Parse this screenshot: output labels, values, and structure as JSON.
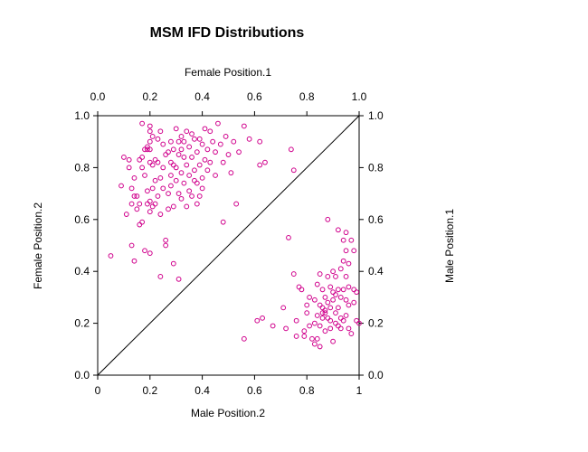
{
  "chart_data": {
    "type": "scatter",
    "title": "MSM IFD Distributions",
    "x_bottom_label": "Male Position.2",
    "x_top_label": "Female Position.1",
    "y_left_label": "Female Position.2",
    "y_right_label": "Male Position.1",
    "xlim": [
      0,
      1
    ],
    "ylim": [
      0,
      1
    ],
    "bottom_ticks": [
      "0",
      "0.2",
      "0.4",
      "0.6",
      "0.8",
      "1"
    ],
    "top_ticks": [
      "0.0",
      "0.2",
      "0.4",
      "0.6",
      "0.8",
      "1.0"
    ],
    "left_ticks": [
      "0.0",
      "0.2",
      "0.4",
      "0.6",
      "0.8",
      "1.0"
    ],
    "right_ticks": [
      "0.0",
      "0.2",
      "0.4",
      "0.6",
      "0.8",
      "1.0"
    ],
    "reference_line": {
      "from": [
        0,
        0
      ],
      "to": [
        1,
        1
      ]
    },
    "grid": false,
    "point_color": "#d0008c",
    "series": [
      {
        "values": [
          [
            0.05,
            0.46
          ],
          [
            0.09,
            0.73
          ],
          [
            0.1,
            0.84
          ],
          [
            0.11,
            0.62
          ],
          [
            0.12,
            0.8
          ],
          [
            0.12,
            0.83
          ],
          [
            0.13,
            0.5
          ],
          [
            0.13,
            0.66
          ],
          [
            0.13,
            0.72
          ],
          [
            0.14,
            0.76
          ],
          [
            0.14,
            0.44
          ],
          [
            0.14,
            0.69
          ],
          [
            0.15,
            0.64
          ],
          [
            0.15,
            0.69
          ],
          [
            0.16,
            0.83
          ],
          [
            0.16,
            0.66
          ],
          [
            0.16,
            0.58
          ],
          [
            0.17,
            0.97
          ],
          [
            0.17,
            0.84
          ],
          [
            0.17,
            0.8
          ],
          [
            0.17,
            0.59
          ],
          [
            0.18,
            0.87
          ],
          [
            0.18,
            0.77
          ],
          [
            0.18,
            0.48
          ],
          [
            0.19,
            0.88
          ],
          [
            0.19,
            0.87
          ],
          [
            0.19,
            0.71
          ],
          [
            0.19,
            0.66
          ],
          [
            0.2,
            0.96
          ],
          [
            0.2,
            0.94
          ],
          [
            0.2,
            0.9
          ],
          [
            0.2,
            0.87
          ],
          [
            0.2,
            0.82
          ],
          [
            0.2,
            0.67
          ],
          [
            0.2,
            0.63
          ],
          [
            0.2,
            0.47
          ],
          [
            0.21,
            0.92
          ],
          [
            0.21,
            0.81
          ],
          [
            0.21,
            0.72
          ],
          [
            0.21,
            0.65
          ],
          [
            0.22,
            0.83
          ],
          [
            0.22,
            0.75
          ],
          [
            0.22,
            0.66
          ],
          [
            0.23,
            0.91
          ],
          [
            0.23,
            0.82
          ],
          [
            0.23,
            0.69
          ],
          [
            0.24,
            0.94
          ],
          [
            0.24,
            0.76
          ],
          [
            0.24,
            0.62
          ],
          [
            0.24,
            0.38
          ],
          [
            0.25,
            0.89
          ],
          [
            0.25,
            0.8
          ],
          [
            0.25,
            0.72
          ],
          [
            0.26,
            0.85
          ],
          [
            0.26,
            0.52
          ],
          [
            0.26,
            0.5
          ],
          [
            0.27,
            0.86
          ],
          [
            0.27,
            0.7
          ],
          [
            0.27,
            0.64
          ],
          [
            0.28,
            0.9
          ],
          [
            0.28,
            0.82
          ],
          [
            0.28,
            0.77
          ],
          [
            0.28,
            0.73
          ],
          [
            0.29,
            0.87
          ],
          [
            0.29,
            0.81
          ],
          [
            0.29,
            0.65
          ],
          [
            0.29,
            0.43
          ],
          [
            0.3,
            0.95
          ],
          [
            0.3,
            0.8
          ],
          [
            0.3,
            0.75
          ],
          [
            0.31,
            0.9
          ],
          [
            0.31,
            0.85
          ],
          [
            0.31,
            0.7
          ],
          [
            0.31,
            0.37
          ],
          [
            0.32,
            0.92
          ],
          [
            0.32,
            0.87
          ],
          [
            0.32,
            0.78
          ],
          [
            0.32,
            0.68
          ],
          [
            0.33,
            0.9
          ],
          [
            0.33,
            0.84
          ],
          [
            0.33,
            0.74
          ],
          [
            0.34,
            0.94
          ],
          [
            0.34,
            0.81
          ],
          [
            0.34,
            0.65
          ],
          [
            0.35,
            0.88
          ],
          [
            0.35,
            0.77
          ],
          [
            0.35,
            0.71
          ],
          [
            0.36,
            0.93
          ],
          [
            0.36,
            0.84
          ],
          [
            0.36,
            0.69
          ],
          [
            0.37,
            0.91
          ],
          [
            0.37,
            0.79
          ],
          [
            0.37,
            0.75
          ],
          [
            0.38,
            0.86
          ],
          [
            0.38,
            0.74
          ],
          [
            0.38,
            0.66
          ],
          [
            0.39,
            0.91
          ],
          [
            0.39,
            0.81
          ],
          [
            0.39,
            0.69
          ],
          [
            0.4,
            0.89
          ],
          [
            0.4,
            0.76
          ],
          [
            0.4,
            0.72
          ],
          [
            0.41,
            0.95
          ],
          [
            0.41,
            0.83
          ],
          [
            0.42,
            0.87
          ],
          [
            0.42,
            0.79
          ],
          [
            0.43,
            0.94
          ],
          [
            0.43,
            0.82
          ],
          [
            0.44,
            0.9
          ],
          [
            0.45,
            0.86
          ],
          [
            0.45,
            0.77
          ],
          [
            0.46,
            0.97
          ],
          [
            0.47,
            0.89
          ],
          [
            0.48,
            0.82
          ],
          [
            0.48,
            0.59
          ],
          [
            0.49,
            0.92
          ],
          [
            0.5,
            0.85
          ],
          [
            0.51,
            0.78
          ],
          [
            0.52,
            0.9
          ],
          [
            0.53,
            0.66
          ],
          [
            0.54,
            0.86
          ],
          [
            0.56,
            0.96
          ],
          [
            0.58,
            0.91
          ],
          [
            0.62,
            0.9
          ],
          [
            0.62,
            0.81
          ],
          [
            0.64,
            0.82
          ],
          [
            0.56,
            0.14
          ],
          [
            0.61,
            0.21
          ],
          [
            0.63,
            0.22
          ],
          [
            0.67,
            0.19
          ],
          [
            0.71,
            0.26
          ],
          [
            0.72,
            0.18
          ],
          [
            0.73,
            0.53
          ],
          [
            0.74,
            0.87
          ],
          [
            0.75,
            0.79
          ],
          [
            0.75,
            0.39
          ],
          [
            0.76,
            0.15
          ],
          [
            0.76,
            0.21
          ],
          [
            0.77,
            0.34
          ],
          [
            0.78,
            0.33
          ],
          [
            0.79,
            0.17
          ],
          [
            0.79,
            0.15
          ],
          [
            0.8,
            0.27
          ],
          [
            0.8,
            0.24
          ],
          [
            0.81,
            0.3
          ],
          [
            0.81,
            0.19
          ],
          [
            0.82,
            0.14
          ],
          [
            0.83,
            0.12
          ],
          [
            0.83,
            0.29
          ],
          [
            0.84,
            0.35
          ],
          [
            0.84,
            0.23
          ],
          [
            0.84,
            0.14
          ],
          [
            0.85,
            0.39
          ],
          [
            0.85,
            0.27
          ],
          [
            0.85,
            0.19
          ],
          [
            0.85,
            0.11
          ],
          [
            0.86,
            0.33
          ],
          [
            0.86,
            0.24
          ],
          [
            0.86,
            0.22
          ],
          [
            0.87,
            0.3
          ],
          [
            0.87,
            0.25
          ],
          [
            0.87,
            0.17
          ],
          [
            0.88,
            0.38
          ],
          [
            0.88,
            0.28
          ],
          [
            0.88,
            0.22
          ],
          [
            0.88,
            0.6
          ],
          [
            0.89,
            0.34
          ],
          [
            0.89,
            0.26
          ],
          [
            0.89,
            0.18
          ],
          [
            0.9,
            0.32
          ],
          [
            0.9,
            0.29
          ],
          [
            0.9,
            0.13
          ],
          [
            0.91,
            0.38
          ],
          [
            0.91,
            0.31
          ],
          [
            0.91,
            0.24
          ],
          [
            0.91,
            0.2
          ],
          [
            0.92,
            0.33
          ],
          [
            0.92,
            0.26
          ],
          [
            0.92,
            0.56
          ],
          [
            0.93,
            0.41
          ],
          [
            0.93,
            0.3
          ],
          [
            0.93,
            0.22
          ],
          [
            0.93,
            0.18
          ],
          [
            0.94,
            0.52
          ],
          [
            0.94,
            0.44
          ],
          [
            0.94,
            0.33
          ],
          [
            0.94,
            0.21
          ],
          [
            0.95,
            0.55
          ],
          [
            0.95,
            0.48
          ],
          [
            0.95,
            0.38
          ],
          [
            0.95,
            0.29
          ],
          [
            0.95,
            0.23
          ],
          [
            0.96,
            0.43
          ],
          [
            0.96,
            0.34
          ],
          [
            0.96,
            0.27
          ],
          [
            0.96,
            0.18
          ],
          [
            0.97,
            0.52
          ],
          [
            0.97,
            0.16
          ],
          [
            0.98,
            0.48
          ],
          [
            0.98,
            0.33
          ],
          [
            0.98,
            0.28
          ],
          [
            0.99,
            0.32
          ],
          [
            0.99,
            0.21
          ],
          [
            1.0,
            0.2
          ],
          [
            0.86,
            0.26
          ],
          [
            0.89,
            0.21
          ],
          [
            0.9,
            0.4
          ],
          [
            0.87,
            0.24
          ],
          [
            0.92,
            0.19
          ],
          [
            0.83,
            0.2
          ]
        ]
      }
    ]
  }
}
